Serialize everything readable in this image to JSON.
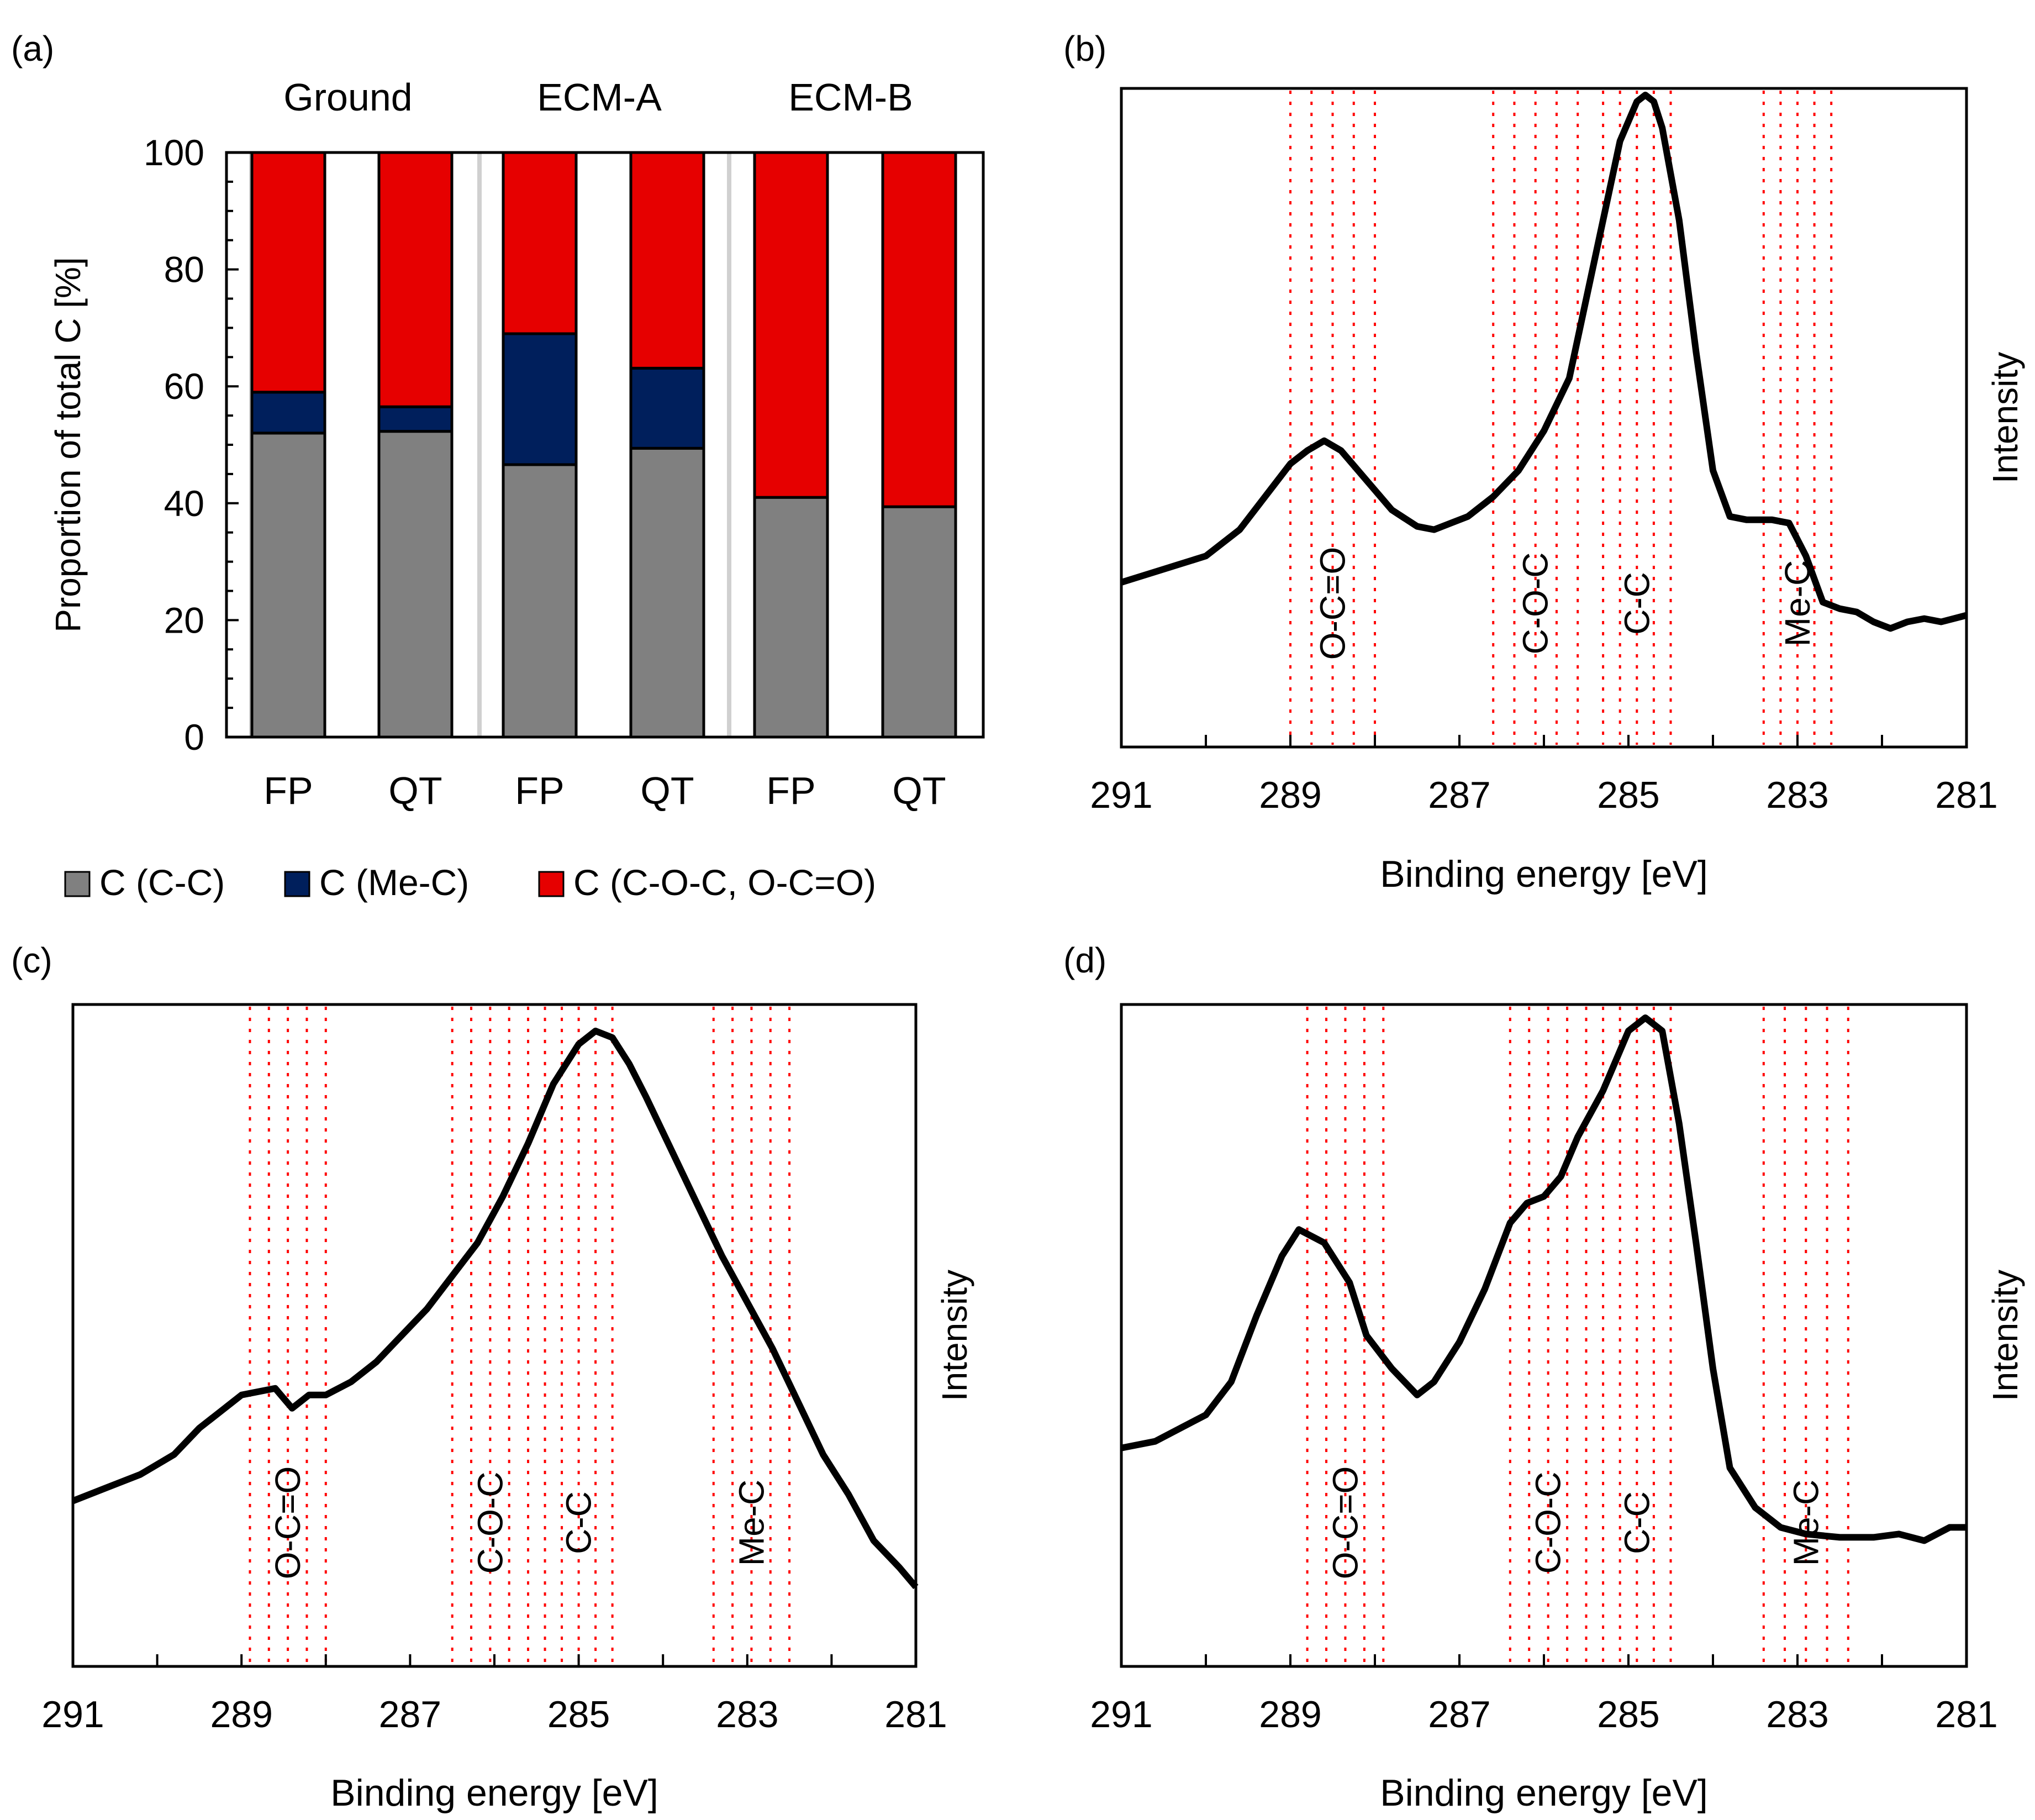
{
  "colors": {
    "cc": "#808080",
    "mec": "#001f5c",
    "coc": "#e60000",
    "band": "#ff0000",
    "line": "#000000",
    "bar_outline": "#000000"
  },
  "panel_a": {
    "label": "(a)",
    "groups": [
      "Ground",
      "ECM-A",
      "ECM-B"
    ],
    "legend": [
      "C (C-C)",
      "C (Me-C)",
      "C (C-O-C, O-C=O)"
    ]
  },
  "panel_b": {
    "label": "(b)"
  },
  "panel_c": {
    "label": "(c)"
  },
  "panel_d": {
    "label": "(d)"
  },
  "chart_data": [
    {
      "type": "bar",
      "stacked": true,
      "categories": [
        "FP",
        "QT",
        "FP",
        "QT",
        "FP",
        "QT"
      ],
      "group_labels": [
        "Ground",
        "ECM-A",
        "ECM-B"
      ],
      "series": [
        {
          "name": "C (C-C)",
          "values": [
            52,
            52.3,
            46.6,
            49.4,
            41,
            39.4
          ]
        },
        {
          "name": "C (Me-C)",
          "values": [
            7,
            4.2,
            22.4,
            13.7,
            0,
            0
          ]
        },
        {
          "name": "C (C-O-C, O-C=O)",
          "values": [
            41,
            43.5,
            31,
            36.9,
            59,
            60.6
          ]
        }
      ],
      "ylabel": "Proportion of total C [%]",
      "ylim": [
        0,
        100
      ],
      "yticks": [
        0,
        20,
        40,
        60,
        80,
        100
      ],
      "legend_position": "bottom"
    },
    {
      "type": "line",
      "xlabel": "Binding energy [eV]",
      "ylabel": "Intensity",
      "xlim": [
        291,
        281
      ],
      "xticks": [
        291,
        289,
        287,
        285,
        283,
        281
      ],
      "ylim": [
        0,
        100
      ],
      "bands": [
        {
          "label": "O-C=O",
          "from": 289.0,
          "to": 288.0
        },
        {
          "label": "C-O-C",
          "from": 286.6,
          "to": 285.6
        },
        {
          "label": "C-C",
          "from": 285.3,
          "to": 284.5
        },
        {
          "label": "Me-C",
          "from": 283.4,
          "to": 282.6
        }
      ],
      "series": [
        {
          "x": [
            291,
            290.5,
            290,
            289.6,
            289.3,
            289.0,
            288.8,
            288.6,
            288.4,
            288.2,
            288.0,
            287.8,
            287.5,
            287.3,
            287.1,
            286.9,
            286.6,
            286.3,
            286.0,
            285.7,
            285.5,
            285.3,
            285.1,
            284.9,
            284.8,
            284.7,
            284.6,
            284.4,
            284.2,
            284.0,
            283.8,
            283.6,
            283.3,
            283.1,
            282.9,
            282.7,
            282.5,
            282.3,
            282.1,
            281.9,
            281.7,
            281.5,
            281.3,
            281.0
          ],
          "y": [
            25,
            27,
            29,
            33,
            38,
            43,
            45,
            46.5,
            45,
            42,
            39,
            36,
            33.5,
            33,
            34,
            35,
            38,
            42,
            48,
            56,
            68,
            80,
            92,
            98,
            99,
            98,
            94,
            80,
            60,
            42,
            35,
            34.5,
            34.5,
            34,
            29,
            22,
            21,
            20.5,
            19,
            18,
            19,
            19.5,
            19,
            20
          ]
        }
      ]
    },
    {
      "type": "line",
      "xlabel": "Binding energy [eV]",
      "ylabel": "Intensity",
      "xlim": [
        291,
        281
      ],
      "xticks": [
        291,
        289,
        287,
        285,
        283,
        281
      ],
      "ylim": [
        0,
        100
      ],
      "bands": [
        {
          "label": "O-C=O",
          "from": 288.9,
          "to": 288.0
        },
        {
          "label": "C-O-C",
          "from": 286.5,
          "to": 285.6
        },
        {
          "label": "C-C",
          "from": 285.4,
          "to": 284.6
        },
        {
          "label": "Me-C",
          "from": 283.4,
          "to": 282.5
        }
      ],
      "series": [
        {
          "x": [
            291,
            290.6,
            290.2,
            289.8,
            289.5,
            289.2,
            289.0,
            288.8,
            288.6,
            288.4,
            288.2,
            288.0,
            287.7,
            287.4,
            287.1,
            286.8,
            286.5,
            286.2,
            285.9,
            285.6,
            285.3,
            285.0,
            284.8,
            284.6,
            284.4,
            284.2,
            283.9,
            283.6,
            283.3,
            283.0,
            282.7,
            282.4,
            282.1,
            281.8,
            281.5,
            281.2,
            281.0
          ],
          "y": [
            25,
            27,
            29,
            32,
            36,
            39,
            41,
            41.5,
            42,
            39,
            41,
            41,
            43,
            46,
            50,
            54,
            59,
            64,
            71,
            79,
            88,
            94,
            96,
            95,
            91,
            86,
            78,
            70,
            62,
            55,
            48,
            40,
            32,
            26,
            19,
            15,
            12
          ]
        }
      ]
    },
    {
      "type": "line",
      "xlabel": "Binding energy [eV]",
      "ylabel": "Intensity",
      "xlim": [
        291,
        281
      ],
      "xticks": [
        291,
        289,
        287,
        285,
        283,
        281
      ],
      "ylim": [
        0,
        100
      ],
      "bands": [
        {
          "label": "O-C=O",
          "from": 288.8,
          "to": 287.9
        },
        {
          "label": "C-O-C",
          "from": 286.4,
          "to": 285.5
        },
        {
          "label": "C-C",
          "from": 285.3,
          "to": 284.5
        },
        {
          "label": "Me-C",
          "from": 283.4,
          "to": 282.4
        }
      ],
      "series": [
        {
          "x": [
            291,
            290.6,
            290.3,
            290.0,
            289.7,
            289.4,
            289.1,
            288.9,
            288.6,
            288.3,
            288.1,
            287.8,
            287.5,
            287.3,
            287.0,
            286.7,
            286.4,
            286.2,
            286.0,
            285.8,
            285.6,
            285.3,
            285.0,
            284.8,
            284.6,
            284.4,
            284.2,
            284.0,
            283.8,
            283.5,
            283.2,
            282.9,
            282.5,
            282.1,
            281.8,
            281.5,
            281.2,
            281.0
          ],
          "y": [
            33,
            34,
            36,
            38,
            43,
            53,
            62,
            66,
            64,
            58,
            50,
            45,
            41,
            43,
            49,
            57,
            67,
            70,
            71,
            74,
            80,
            87,
            96,
            98,
            96,
            82,
            64,
            45,
            30,
            24,
            21,
            20,
            19.5,
            19.5,
            20,
            19,
            21,
            21
          ]
        }
      ]
    }
  ]
}
